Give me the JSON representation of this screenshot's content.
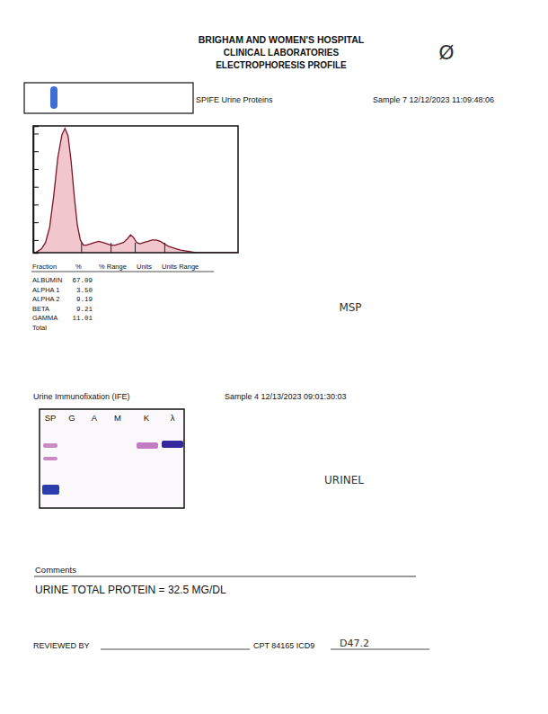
{
  "header": {
    "title": "BRIGHAM AND WOMEN'S HOSPITAL",
    "subtitle": "CLINICAL LABORATORIES",
    "report": "ELECTROPHORESIS PROFILE"
  },
  "annotations": {
    "top_mark": "Ø",
    "spe_note": "MSP",
    "ife_note": "URINEL",
    "icd_code": "D47.2"
  },
  "spe": {
    "label": "SPIFE Urine Proteins",
    "sample": "Sample 7 12/12/2023 11:09:48:06"
  },
  "chart_data": {
    "type": "area",
    "color": "#f2c6cd",
    "x": [
      0,
      1,
      2,
      4,
      6,
      8,
      10,
      12,
      14,
      15.5,
      17,
      18.5,
      20,
      21.5,
      23,
      24.5,
      26,
      28,
      30,
      32,
      34,
      36,
      38,
      40,
      42,
      44,
      46,
      47.5,
      49,
      50.5,
      52,
      54,
      56,
      58,
      60,
      62,
      64,
      66,
      68,
      70,
      72,
      74,
      76,
      78,
      80,
      100
    ],
    "values": [
      0,
      0,
      1,
      3,
      8,
      20,
      45,
      75,
      93,
      98,
      92,
      72,
      45,
      22,
      10,
      6,
      6,
      7,
      8,
      9,
      8,
      7,
      6,
      6,
      7,
      8,
      11,
      14,
      12,
      8,
      7,
      8,
      9,
      10,
      10,
      9,
      7,
      5,
      4,
      3,
      2,
      1.5,
      1,
      0.5,
      0,
      0
    ],
    "fraction_boundaries": [
      23.6,
      38,
      49.8,
      64.2
    ],
    "xlim": [
      0,
      100
    ],
    "ylim": [
      0,
      100
    ],
    "yticks": [
      10,
      24,
      38,
      52,
      66,
      80,
      94
    ],
    "tick_labels": false
  },
  "fraction_table": {
    "columns": [
      "Fraction",
      "%",
      "% Range",
      "Units",
      "Units Range"
    ],
    "rows": [
      [
        "ALBUMIN",
        "67.09"
      ],
      [
        "ALPHA 1",
        "3.50"
      ],
      [
        "ALPHA 2",
        "9.19"
      ],
      [
        "BETA",
        "9.21"
      ],
      [
        "GAMMA",
        "11.01"
      ]
    ],
    "total_label": "Total"
  },
  "ife": {
    "label": "Urine Immunofixation (IFE)",
    "sample": "Sample 4 12/13/2023 09:01:30:03",
    "lanes": [
      "SP",
      "G",
      "A",
      "M",
      "K",
      "λ"
    ]
  },
  "comments": {
    "title": "Comments",
    "text": "URINE TOTAL PROTEIN = 32.5 MG/DL"
  },
  "footer": {
    "reviewed_by": "REVIEWED BY",
    "cpt": "CPT 84165 ICD9"
  }
}
